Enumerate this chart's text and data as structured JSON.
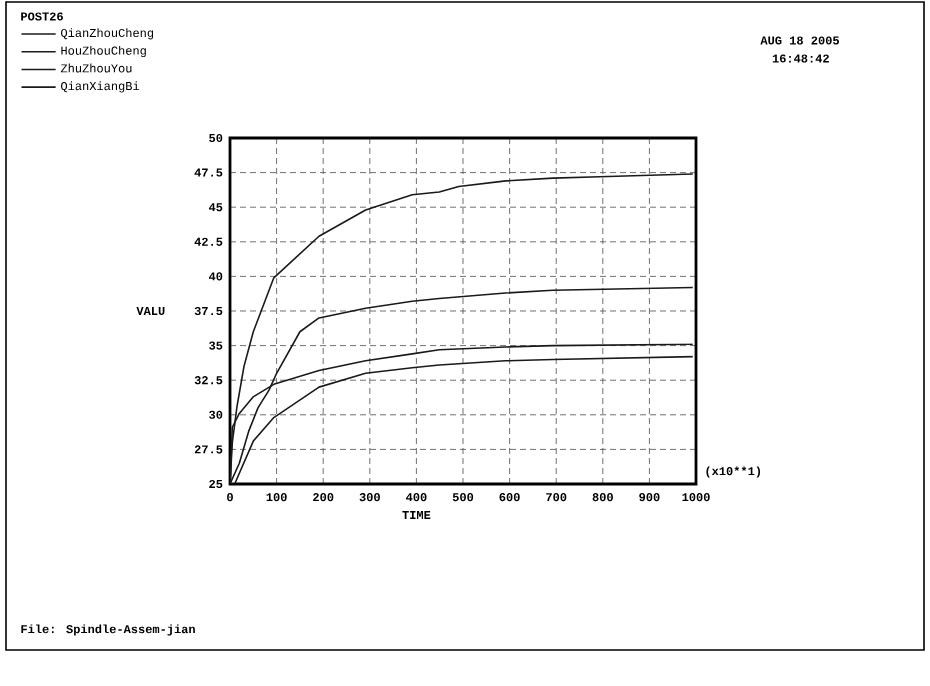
{
  "chart_data": {
    "type": "line",
    "title": "POST26",
    "xlabel": "TIME",
    "ylabel": "VALU",
    "annotations": [
      "AUG 18 2005",
      "16:48:42",
      "(x10**1)",
      "File: Spindle-Assem-jian"
    ],
    "xlim": [
      0,
      1000
    ],
    "xticks": [
      0,
      100,
      200,
      300,
      400,
      500,
      600,
      700,
      800,
      900,
      1000
    ],
    "ylim": [
      25,
      50
    ],
    "yticks": [
      25,
      27.5,
      30,
      32.5,
      35,
      37.5,
      40,
      42.5,
      45,
      47.5,
      50
    ],
    "grid": true,
    "legend": "top left",
    "line_style": "solid",
    "marker": "none",
    "series": [
      {
        "name": "QianZhouCheng",
        "color": "#1a1a1a",
        "x": [
          0,
          5,
          15,
          30,
          50,
          94,
          191,
          291,
          391,
          449,
          491,
          592,
          693,
          793,
          993
        ],
        "values": [
          25,
          28,
          30.6,
          33.5,
          36,
          39.9,
          42.9,
          44.8,
          45.9,
          46.1,
          46.5,
          46.9,
          47.1,
          47.2,
          47.4
        ]
      },
      {
        "name": "HouZhouCheng",
        "color": "#1a1a1a",
        "x": [
          0,
          20,
          40,
          60,
          84,
          100,
          150,
          191,
          291,
          391,
          449,
          591,
          693,
          993
        ],
        "values": [
          25,
          26.5,
          28.8,
          30.5,
          31.8,
          33,
          36,
          37,
          37.7,
          38.2,
          38.4,
          38.8,
          39,
          39.2
        ]
      },
      {
        "name": "ZhuZhouYou",
        "color": "#1a1a1a",
        "x": [
          0,
          5,
          20,
          50,
          94,
          191,
          291,
          391,
          449,
          591,
          693,
          993
        ],
        "values": [
          25,
          29.1,
          30.1,
          31.3,
          32.2,
          33.2,
          33.9,
          34.4,
          34.7,
          34.9,
          35,
          35.1
        ]
      },
      {
        "name": "QianXiangBi",
        "color": "#1a1a1a",
        "x": [
          0,
          10,
          50,
          94,
          191,
          291,
          391,
          449,
          591,
          693,
          993
        ],
        "values": [
          25,
          25,
          28.1,
          29.8,
          32,
          33,
          33.4,
          33.6,
          33.9,
          34,
          34.2
        ]
      }
    ]
  }
}
